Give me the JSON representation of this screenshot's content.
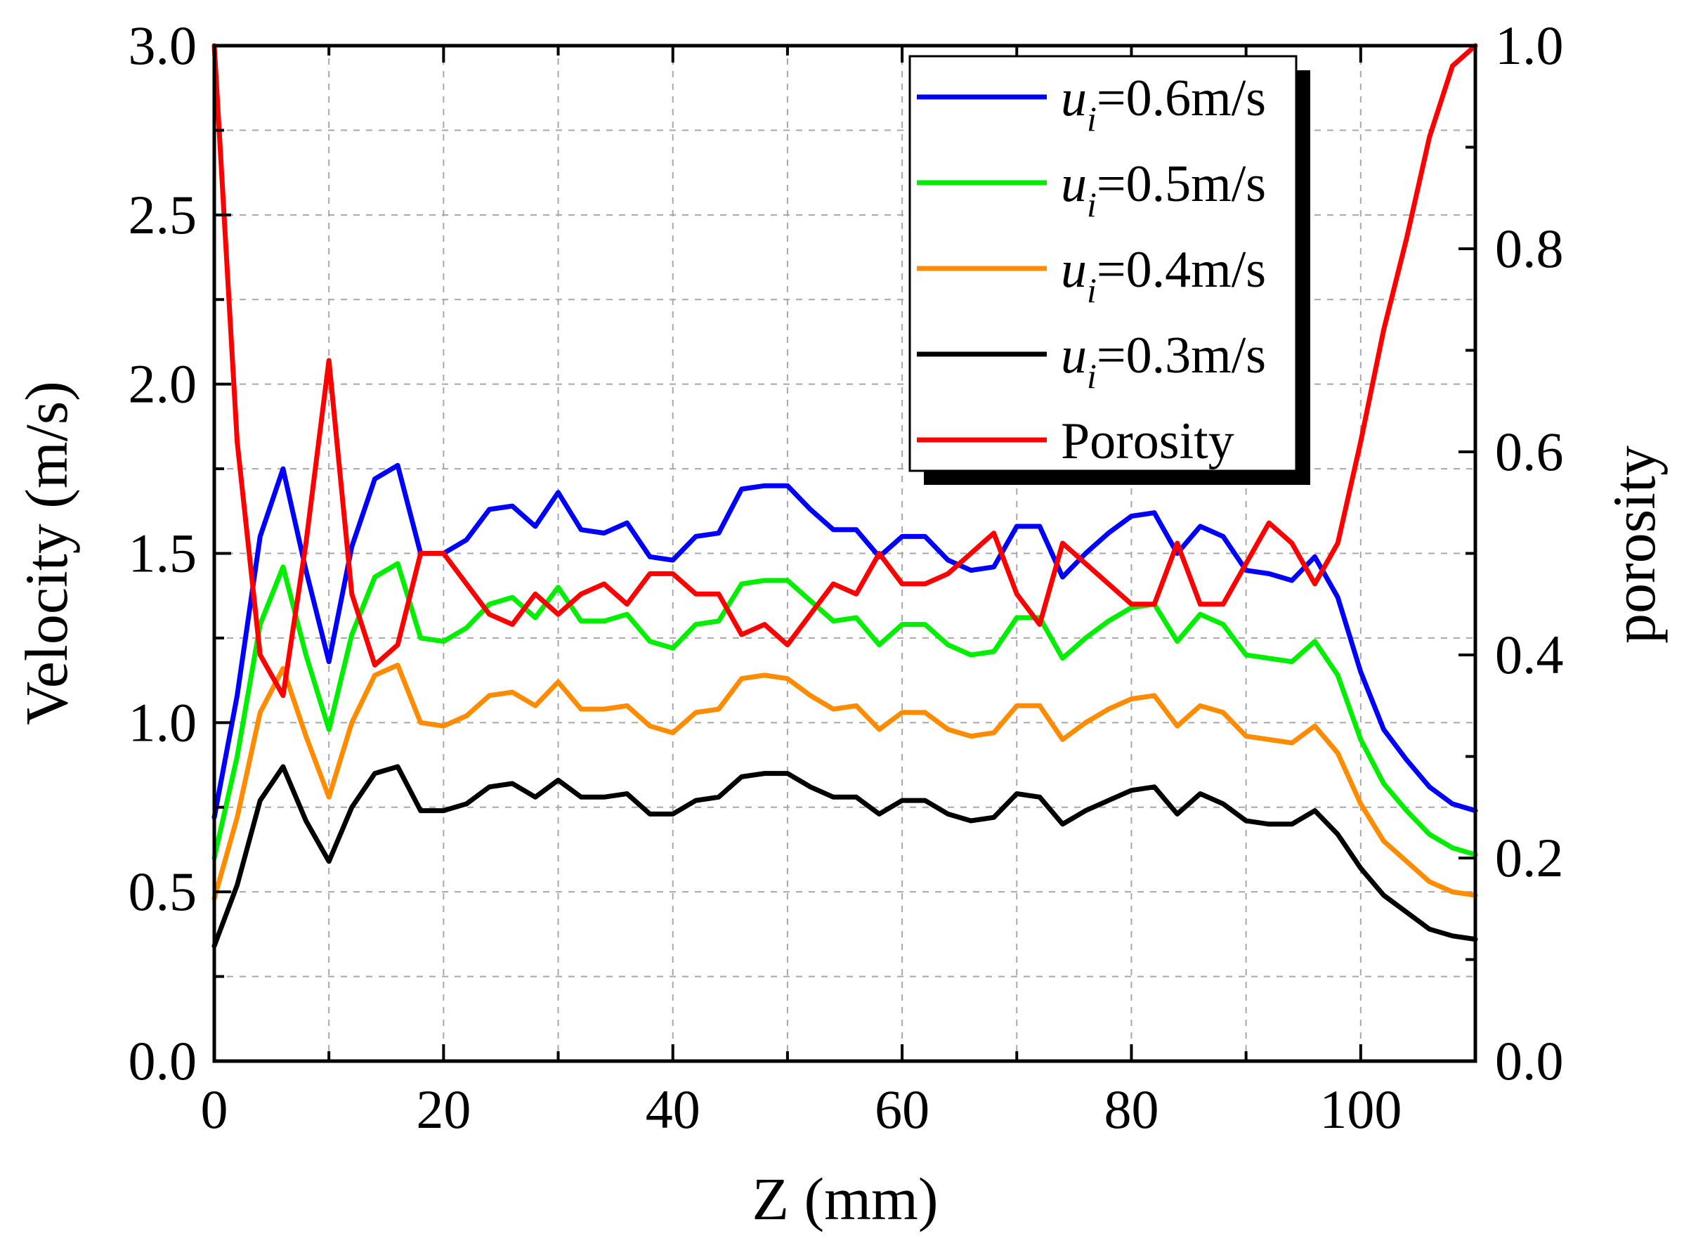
{
  "chart_data": {
    "type": "line",
    "xlabel": "Z (mm)",
    "ylabel": "Velocity (m/s)",
    "y2label": "porosity",
    "xlim": [
      0,
      110
    ],
    "ylim": [
      0,
      3
    ],
    "y2lim": [
      0,
      1
    ],
    "xticks": [
      "0",
      "20",
      "40",
      "60",
      "80",
      "100"
    ],
    "yticks": [
      "0.0",
      "0.5",
      "1.0",
      "1.5",
      "2.0",
      "2.5",
      "3.0"
    ],
    "y2ticks": [
      "0.0",
      "0.2",
      "0.4",
      "0.6",
      "0.8",
      "1.0"
    ],
    "grid": true,
    "legend_position": "top-right",
    "series": [
      {
        "name_prefix": "u",
        "name_sub": "i",
        "name_suffix": "=0.6m/s",
        "axis": "left",
        "color": "#0000ff",
        "x": [
          0,
          2,
          4,
          6,
          8,
          10,
          12,
          14,
          16,
          18,
          20,
          22,
          24,
          26,
          28,
          30,
          32,
          34,
          36,
          38,
          40,
          42,
          44,
          46,
          48,
          50,
          52,
          54,
          56,
          58,
          60,
          62,
          64,
          66,
          68,
          70,
          72,
          74,
          76,
          78,
          80,
          82,
          84,
          86,
          88,
          90,
          92,
          94,
          96,
          98,
          100,
          102,
          104,
          106,
          108,
          110
        ],
        "values": [
          0.72,
          1.08,
          1.55,
          1.75,
          1.45,
          1.18,
          1.52,
          1.72,
          1.76,
          1.5,
          1.5,
          1.54,
          1.63,
          1.64,
          1.58,
          1.68,
          1.57,
          1.56,
          1.59,
          1.49,
          1.48,
          1.55,
          1.56,
          1.69,
          1.7,
          1.7,
          1.63,
          1.57,
          1.57,
          1.49,
          1.55,
          1.55,
          1.48,
          1.45,
          1.46,
          1.58,
          1.58,
          1.43,
          1.5,
          1.56,
          1.61,
          1.62,
          1.5,
          1.58,
          1.55,
          1.45,
          1.44,
          1.42,
          1.49,
          1.37,
          1.15,
          0.98,
          0.89,
          0.81,
          0.76,
          0.74
        ]
      },
      {
        "name_prefix": "u",
        "name_sub": "i",
        "name_suffix": "=0.5m/s",
        "axis": "left",
        "color": "#00ee00",
        "x": [
          0,
          2,
          4,
          6,
          8,
          10,
          12,
          14,
          16,
          18,
          20,
          22,
          24,
          26,
          28,
          30,
          32,
          34,
          36,
          38,
          40,
          42,
          44,
          46,
          48,
          50,
          52,
          54,
          56,
          58,
          60,
          62,
          64,
          66,
          68,
          70,
          72,
          74,
          76,
          78,
          80,
          82,
          84,
          86,
          88,
          90,
          92,
          94,
          96,
          98,
          100,
          102,
          104,
          106,
          108,
          110
        ],
        "values": [
          0.6,
          0.9,
          1.29,
          1.46,
          1.2,
          0.98,
          1.26,
          1.43,
          1.47,
          1.25,
          1.24,
          1.28,
          1.35,
          1.37,
          1.31,
          1.4,
          1.3,
          1.3,
          1.32,
          1.24,
          1.22,
          1.29,
          1.3,
          1.41,
          1.42,
          1.42,
          1.36,
          1.3,
          1.31,
          1.23,
          1.29,
          1.29,
          1.23,
          1.2,
          1.21,
          1.31,
          1.31,
          1.19,
          1.25,
          1.3,
          1.34,
          1.35,
          1.24,
          1.32,
          1.29,
          1.2,
          1.19,
          1.18,
          1.24,
          1.14,
          0.95,
          0.82,
          0.74,
          0.67,
          0.63,
          0.61
        ]
      },
      {
        "name_prefix": "u",
        "name_sub": "i",
        "name_suffix": "=0.4m/s",
        "axis": "left",
        "color": "#ff8c00",
        "x": [
          0,
          2,
          4,
          6,
          8,
          10,
          12,
          14,
          16,
          18,
          20,
          22,
          24,
          26,
          28,
          30,
          32,
          34,
          36,
          38,
          40,
          42,
          44,
          46,
          48,
          50,
          52,
          54,
          56,
          58,
          60,
          62,
          64,
          66,
          68,
          70,
          72,
          74,
          76,
          78,
          80,
          82,
          84,
          86,
          88,
          90,
          92,
          94,
          96,
          98,
          100,
          102,
          104,
          106,
          108,
          110
        ],
        "values": [
          0.48,
          0.72,
          1.03,
          1.16,
          0.96,
          0.78,
          1.0,
          1.14,
          1.17,
          1.0,
          0.99,
          1.02,
          1.08,
          1.09,
          1.05,
          1.12,
          1.04,
          1.04,
          1.05,
          0.99,
          0.97,
          1.03,
          1.04,
          1.13,
          1.14,
          1.13,
          1.08,
          1.04,
          1.05,
          0.98,
          1.03,
          1.03,
          0.98,
          0.96,
          0.97,
          1.05,
          1.05,
          0.95,
          1.0,
          1.04,
          1.07,
          1.08,
          0.99,
          1.05,
          1.03,
          0.96,
          0.95,
          0.94,
          0.99,
          0.91,
          0.76,
          0.65,
          0.59,
          0.53,
          0.5,
          0.49
        ]
      },
      {
        "name_prefix": "u",
        "name_sub": "i",
        "name_suffix": "=0.3m/s",
        "axis": "left",
        "color": "#000000",
        "x": [
          0,
          2,
          4,
          6,
          8,
          10,
          12,
          14,
          16,
          18,
          20,
          22,
          24,
          26,
          28,
          30,
          32,
          34,
          36,
          38,
          40,
          42,
          44,
          46,
          48,
          50,
          52,
          54,
          56,
          58,
          60,
          62,
          64,
          66,
          68,
          70,
          72,
          74,
          76,
          78,
          80,
          82,
          84,
          86,
          88,
          90,
          92,
          94,
          96,
          98,
          100,
          102,
          104,
          106,
          108,
          110
        ],
        "values": [
          0.34,
          0.52,
          0.77,
          0.87,
          0.71,
          0.59,
          0.75,
          0.85,
          0.87,
          0.74,
          0.74,
          0.76,
          0.81,
          0.82,
          0.78,
          0.83,
          0.78,
          0.78,
          0.79,
          0.73,
          0.73,
          0.77,
          0.78,
          0.84,
          0.85,
          0.85,
          0.81,
          0.78,
          0.78,
          0.73,
          0.77,
          0.77,
          0.73,
          0.71,
          0.72,
          0.79,
          0.78,
          0.7,
          0.74,
          0.77,
          0.8,
          0.81,
          0.73,
          0.79,
          0.76,
          0.71,
          0.7,
          0.7,
          0.74,
          0.67,
          0.57,
          0.49,
          0.44,
          0.39,
          0.37,
          0.36
        ]
      },
      {
        "name": "Porosity",
        "axis": "right",
        "color": "#ff0000",
        "x": [
          0,
          2,
          4,
          6,
          8,
          10,
          12,
          14,
          16,
          18,
          20,
          22,
          24,
          26,
          28,
          30,
          32,
          34,
          36,
          38,
          40,
          42,
          44,
          46,
          48,
          50,
          52,
          54,
          56,
          58,
          60,
          62,
          64,
          66,
          68,
          70,
          72,
          74,
          76,
          78,
          80,
          82,
          84,
          86,
          88,
          90,
          92,
          94,
          96,
          98,
          100,
          102,
          104,
          106,
          108,
          110
        ],
        "values": [
          1.0,
          0.61,
          0.4,
          0.36,
          0.51,
          0.69,
          0.46,
          0.39,
          0.41,
          0.5,
          0.5,
          0.47,
          0.44,
          0.43,
          0.46,
          0.44,
          0.46,
          0.47,
          0.45,
          0.48,
          0.48,
          0.46,
          0.46,
          0.42,
          0.43,
          0.41,
          0.44,
          0.47,
          0.46,
          0.5,
          0.47,
          0.47,
          0.48,
          0.5,
          0.52,
          0.46,
          0.43,
          0.51,
          0.49,
          0.47,
          0.45,
          0.45,
          0.51,
          0.45,
          0.45,
          0.49,
          0.53,
          0.51,
          0.47,
          0.51,
          0.61,
          0.72,
          0.81,
          0.91,
          0.98,
          1.0
        ]
      }
    ]
  }
}
